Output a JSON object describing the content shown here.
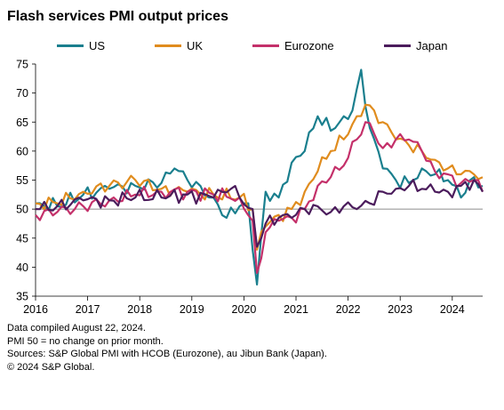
{
  "title": "Flash services PMI output prices",
  "notes": [
    "Data compiled August 22, 2024.",
    "PMI 50 = no change on prior month.",
    "Sources: S&P Global PMI with HCOB (Eurozone), au Jibun Bank (Japan).",
    "© 2024 S&P Global."
  ],
  "chart_data": {
    "type": "line",
    "title": "Flash services PMI output prices",
    "xlabel": "",
    "ylabel": "",
    "x_tick_labels": [
      "2016",
      "2017",
      "2018",
      "2019",
      "2020",
      "2021",
      "2022",
      "2023",
      "2024"
    ],
    "y_tick_labels": [
      "35",
      "40",
      "45",
      "50",
      "55",
      "60",
      "65",
      "70",
      "75"
    ],
    "ylim": [
      35,
      75
    ],
    "xlim": [
      "2016-01",
      "2024-08"
    ],
    "reference_line": 50,
    "legend_position": "top",
    "grid": false,
    "series": [
      {
        "name": "US",
        "color": "#1a7f8e",
        "anchors": [
          [
            "2016-01",
            51
          ],
          [
            "2016-06",
            50.5
          ],
          [
            "2016-12",
            52.5
          ],
          [
            "2017-06",
            53.5
          ],
          [
            "2017-12",
            54
          ],
          [
            "2018-06",
            54.5
          ],
          [
            "2018-09",
            57
          ],
          [
            "2018-12",
            55
          ],
          [
            "2019-06",
            52
          ],
          [
            "2019-09",
            48.5
          ],
          [
            "2019-12",
            50.5
          ],
          [
            "2020-02",
            51
          ],
          [
            "2020-04",
            37
          ],
          [
            "2020-06",
            53
          ],
          [
            "2020-09",
            52
          ],
          [
            "2020-12",
            58
          ],
          [
            "2021-03",
            60
          ],
          [
            "2021-06",
            66
          ],
          [
            "2021-09",
            63.5
          ],
          [
            "2021-12",
            66
          ],
          [
            "2022-02",
            67
          ],
          [
            "2022-04",
            74
          ],
          [
            "2022-06",
            64
          ],
          [
            "2022-09",
            57
          ],
          [
            "2022-12",
            55
          ],
          [
            "2023-03",
            54.5
          ],
          [
            "2023-06",
            57
          ],
          [
            "2023-09",
            56
          ],
          [
            "2023-12",
            55
          ],
          [
            "2024-03",
            52
          ],
          [
            "2024-06",
            55.5
          ],
          [
            "2024-08",
            54
          ]
        ]
      },
      {
        "name": "UK",
        "color": "#e08c1e",
        "anchors": [
          [
            "2016-01",
            51
          ],
          [
            "2016-06",
            51
          ],
          [
            "2016-12",
            53
          ],
          [
            "2017-06",
            54
          ],
          [
            "2017-12",
            55
          ],
          [
            "2018-06",
            53.5
          ],
          [
            "2018-12",
            53
          ],
          [
            "2019-06",
            52.5
          ],
          [
            "2019-12",
            52
          ],
          [
            "2020-03",
            50
          ],
          [
            "2020-04",
            43
          ],
          [
            "2020-06",
            47
          ],
          [
            "2020-09",
            49
          ],
          [
            "2020-12",
            50
          ],
          [
            "2021-03",
            53
          ],
          [
            "2021-06",
            56.5
          ],
          [
            "2021-09",
            60
          ],
          [
            "2021-12",
            62
          ],
          [
            "2022-03",
            66
          ],
          [
            "2022-05",
            68
          ],
          [
            "2022-07",
            67
          ],
          [
            "2022-09",
            65
          ],
          [
            "2022-12",
            62
          ],
          [
            "2023-03",
            61
          ],
          [
            "2023-06",
            60
          ],
          [
            "2023-09",
            58.5
          ],
          [
            "2023-12",
            57
          ],
          [
            "2024-03",
            56
          ],
          [
            "2024-06",
            56
          ],
          [
            "2024-08",
            55.5
          ]
        ]
      },
      {
        "name": "Eurozone",
        "color": "#c4306a",
        "anchors": [
          [
            "2016-01",
            49
          ],
          [
            "2016-06",
            49.5
          ],
          [
            "2016-12",
            50.5
          ],
          [
            "2017-06",
            51.5
          ],
          [
            "2017-12",
            52.5
          ],
          [
            "2018-06",
            53
          ],
          [
            "2018-12",
            53
          ],
          [
            "2019-06",
            52.5
          ],
          [
            "2019-12",
            52
          ],
          [
            "2020-03",
            48
          ],
          [
            "2020-04",
            39
          ],
          [
            "2020-06",
            46
          ],
          [
            "2020-09",
            48
          ],
          [
            "2020-12",
            48.5
          ],
          [
            "2021-03",
            50
          ],
          [
            "2021-06",
            54
          ],
          [
            "2021-09",
            55.5
          ],
          [
            "2021-12",
            57.5
          ],
          [
            "2022-03",
            62
          ],
          [
            "2022-05",
            65
          ],
          [
            "2022-07",
            63
          ],
          [
            "2022-09",
            60.5
          ],
          [
            "2022-12",
            62
          ],
          [
            "2023-03",
            62
          ],
          [
            "2023-06",
            60
          ],
          [
            "2023-09",
            56.5
          ],
          [
            "2023-12",
            56
          ],
          [
            "2024-03",
            54.5
          ],
          [
            "2024-06",
            55
          ],
          [
            "2024-08",
            53
          ]
        ]
      },
      {
        "name": "Japan",
        "color": "#4b1c5c",
        "anchors": [
          [
            "2016-01",
            50
          ],
          [
            "2016-06",
            50.5
          ],
          [
            "2016-12",
            51.5
          ],
          [
            "2017-06",
            51.5
          ],
          [
            "2017-12",
            52
          ],
          [
            "2018-06",
            52
          ],
          [
            "2018-12",
            52.5
          ],
          [
            "2019-06",
            52
          ],
          [
            "2019-10",
            53.5
          ],
          [
            "2019-12",
            52
          ],
          [
            "2020-03",
            50
          ],
          [
            "2020-04",
            43.5
          ],
          [
            "2020-06",
            47.5
          ],
          [
            "2020-09",
            48.5
          ],
          [
            "2020-12",
            48.5
          ],
          [
            "2021-03",
            50
          ],
          [
            "2021-06",
            50.5
          ],
          [
            "2021-09",
            49.5
          ],
          [
            "2021-12",
            50.5
          ],
          [
            "2022-03",
            50
          ],
          [
            "2022-06",
            51
          ],
          [
            "2022-09",
            53
          ],
          [
            "2022-12",
            53.5
          ],
          [
            "2023-03",
            54
          ],
          [
            "2023-06",
            53.5
          ],
          [
            "2023-09",
            53
          ],
          [
            "2023-12",
            53
          ],
          [
            "2024-03",
            54
          ],
          [
            "2024-06",
            55
          ],
          [
            "2024-08",
            53
          ]
        ]
      }
    ]
  }
}
